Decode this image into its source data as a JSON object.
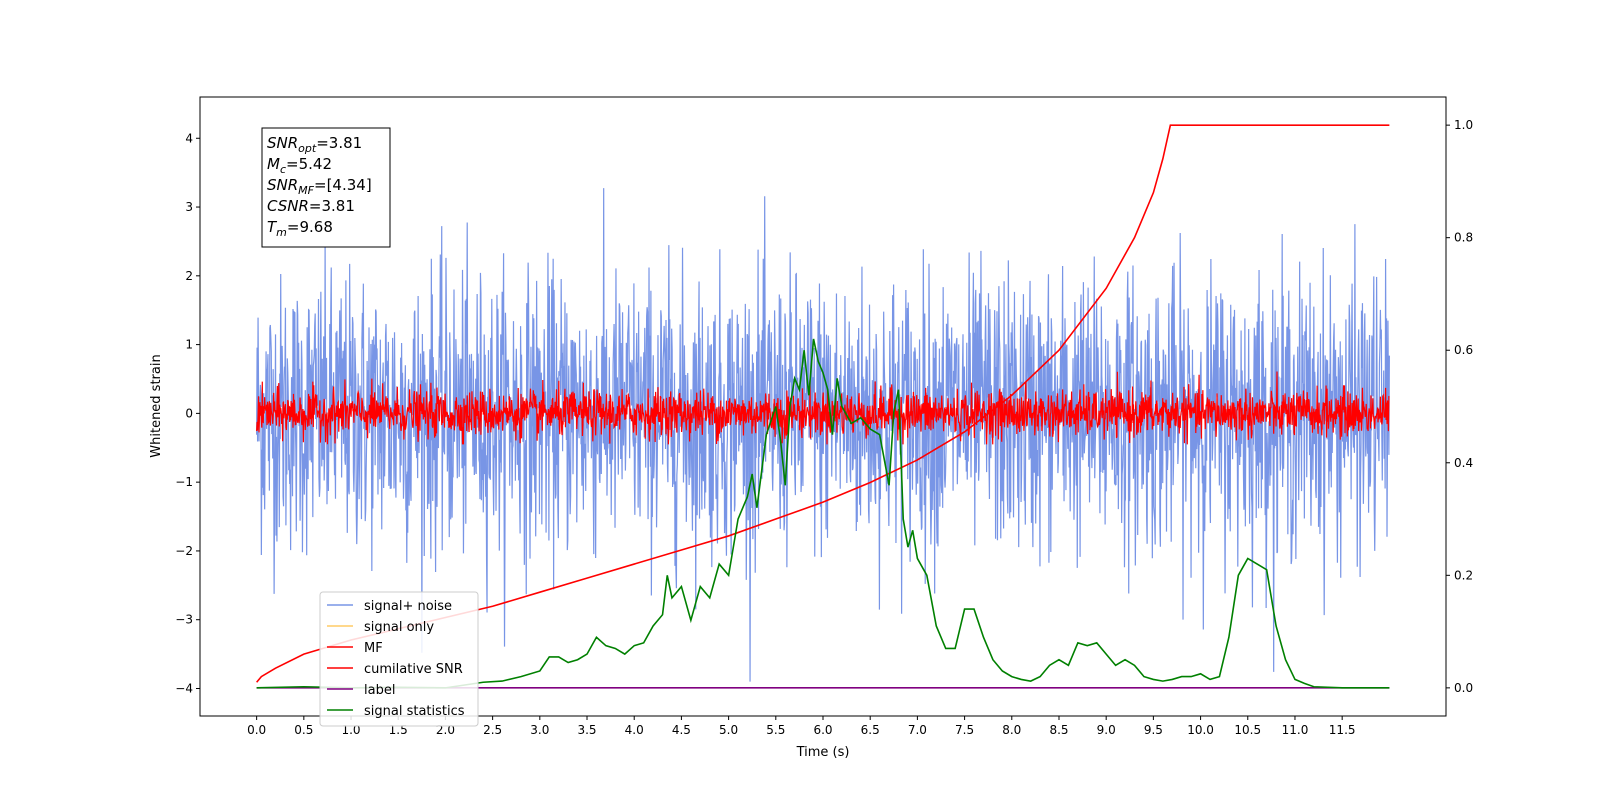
{
  "chart_data": {
    "type": "line",
    "title": "",
    "xlabel": "Time (s)",
    "ylabel_left": "Whitened strain",
    "ylabel_right": "",
    "xlim": [
      -0.6,
      12.6
    ],
    "ylim_left": [
      -4.4,
      4.6
    ],
    "ylim_right": [
      -0.05,
      1.05
    ],
    "x_ticks": [
      0.0,
      0.5,
      1.0,
      1.5,
      2.0,
      2.5,
      3.0,
      3.5,
      4.0,
      4.5,
      5.0,
      5.5,
      6.0,
      6.5,
      7.0,
      7.5,
      8.0,
      8.5,
      9.0,
      9.5,
      10.0,
      10.5,
      11.0,
      11.5
    ],
    "x_tick_labels": [
      "0.0",
      "0.5",
      "1.0",
      "1.5",
      "2.0",
      "2.5",
      "3.0",
      "3.5",
      "4.0",
      "4.5",
      "5.0",
      "5.5",
      "6.0",
      "6.5",
      "7.0",
      "7.5",
      "8.0",
      "8.5",
      "9.0",
      "9.5",
      "10.0",
      "10.5",
      "11.0",
      "11.5"
    ],
    "y_left_ticks": [
      -4,
      -3,
      -2,
      -1,
      0,
      1,
      2,
      3,
      4
    ],
    "y_left_tick_labels": [
      "−4",
      "−3",
      "−2",
      "−1",
      "0",
      "1",
      "2",
      "3",
      "4"
    ],
    "y_right_ticks": [
      0.0,
      0.2,
      0.4,
      0.6,
      0.8,
      1.0
    ],
    "y_right_tick_labels": [
      "0.0",
      "0.2",
      "0.4",
      "0.6",
      "0.8",
      "1.0"
    ],
    "grid": false,
    "legend_placement": "lower-left",
    "series": [
      {
        "name": "signal+ noise",
        "color": "#7895e6",
        "axis": "left",
        "kind": "noise",
        "x_range": [
          0.0,
          12.0
        ],
        "std": 1.0,
        "peak_min": -3.9,
        "peak_max": 4.2
      },
      {
        "name": "signal only",
        "color": "#ffcc66",
        "axis": "left",
        "kind": "hidden"
      },
      {
        "name": "MF",
        "color": "#ff0000",
        "axis": "left",
        "kind": "noise",
        "x_range": [
          0.0,
          12.0
        ],
        "std": 0.17,
        "peak_min": -0.45,
        "peak_max": 1.0
      },
      {
        "name": "cumilative SNR",
        "color": "#ff0000",
        "axis": "right",
        "kind": "line",
        "x": [
          0.0,
          0.05,
          0.2,
          0.5,
          1.0,
          1.5,
          2.0,
          2.5,
          3.0,
          3.5,
          4.0,
          4.5,
          5.0,
          5.5,
          6.0,
          6.5,
          7.0,
          7.5,
          8.0,
          8.5,
          9.0,
          9.3,
          9.5,
          9.6,
          9.68,
          10.0,
          11.0,
          12.0
        ],
        "y": [
          0.01,
          0.02,
          0.035,
          0.06,
          0.085,
          0.105,
          0.125,
          0.145,
          0.17,
          0.195,
          0.22,
          0.245,
          0.27,
          0.3,
          0.33,
          0.365,
          0.405,
          0.455,
          0.52,
          0.6,
          0.71,
          0.8,
          0.88,
          0.94,
          1.0,
          1.0,
          1.0,
          1.0
        ]
      },
      {
        "name": "label",
        "color": "#800080",
        "axis": "right",
        "kind": "line",
        "x": [
          0.0,
          12.0
        ],
        "y": [
          0.0,
          0.0
        ]
      },
      {
        "name": "signal statistics",
        "color": "#008000",
        "axis": "right",
        "kind": "line",
        "x": [
          0.0,
          0.5,
          1.0,
          1.5,
          2.0,
          2.4,
          2.6,
          2.8,
          3.0,
          3.1,
          3.2,
          3.3,
          3.4,
          3.5,
          3.6,
          3.7,
          3.8,
          3.9,
          4.0,
          4.1,
          4.2,
          4.3,
          4.35,
          4.4,
          4.5,
          4.6,
          4.7,
          4.8,
          4.9,
          5.0,
          5.1,
          5.2,
          5.25,
          5.3,
          5.4,
          5.5,
          5.55,
          5.6,
          5.65,
          5.7,
          5.75,
          5.8,
          5.85,
          5.9,
          5.95,
          6.0,
          6.05,
          6.1,
          6.15,
          6.2,
          6.3,
          6.4,
          6.5,
          6.6,
          6.7,
          6.75,
          6.8,
          6.85,
          6.9,
          6.95,
          7.0,
          7.1,
          7.2,
          7.3,
          7.4,
          7.5,
          7.6,
          7.7,
          7.8,
          7.9,
          8.0,
          8.1,
          8.2,
          8.3,
          8.4,
          8.5,
          8.6,
          8.7,
          8.8,
          8.9,
          9.0,
          9.1,
          9.2,
          9.3,
          9.4,
          9.5,
          9.6,
          9.7,
          9.8,
          9.9,
          10.0,
          10.1,
          10.2,
          10.3,
          10.4,
          10.5,
          10.6,
          10.7,
          10.8,
          10.9,
          11.0,
          11.1,
          11.2,
          11.5,
          12.0
        ],
        "y": [
          0.0,
          0.002,
          0.0,
          0.001,
          0.0,
          0.01,
          0.012,
          0.02,
          0.03,
          0.055,
          0.055,
          0.045,
          0.05,
          0.06,
          0.09,
          0.075,
          0.07,
          0.06,
          0.075,
          0.08,
          0.11,
          0.13,
          0.2,
          0.16,
          0.18,
          0.12,
          0.18,
          0.16,
          0.22,
          0.2,
          0.3,
          0.34,
          0.38,
          0.32,
          0.45,
          0.5,
          0.44,
          0.36,
          0.5,
          0.55,
          0.53,
          0.6,
          0.52,
          0.62,
          0.58,
          0.56,
          0.53,
          0.45,
          0.55,
          0.5,
          0.47,
          0.48,
          0.46,
          0.45,
          0.36,
          0.49,
          0.53,
          0.3,
          0.25,
          0.28,
          0.23,
          0.2,
          0.11,
          0.07,
          0.07,
          0.14,
          0.14,
          0.09,
          0.05,
          0.03,
          0.02,
          0.015,
          0.012,
          0.02,
          0.04,
          0.05,
          0.04,
          0.08,
          0.075,
          0.08,
          0.06,
          0.04,
          0.05,
          0.04,
          0.02,
          0.015,
          0.012,
          0.015,
          0.02,
          0.02,
          0.025,
          0.015,
          0.02,
          0.09,
          0.2,
          0.23,
          0.22,
          0.21,
          0.11,
          0.05,
          0.015,
          0.008,
          0.002,
          0.0,
          0.0
        ]
      }
    ],
    "annotation_lines": [
      {
        "var": "SNR",
        "sub": "opt",
        "value": "=3.81"
      },
      {
        "var": "M",
        "sub": "c",
        "value": "=5.42"
      },
      {
        "var": "SNR",
        "sub": "MF",
        "value": "=[4.34]"
      },
      {
        "var": "CSNR",
        "sub": "",
        "value": "=3.81"
      },
      {
        "var": "T",
        "sub": "m",
        "value": "=9.68"
      }
    ]
  }
}
